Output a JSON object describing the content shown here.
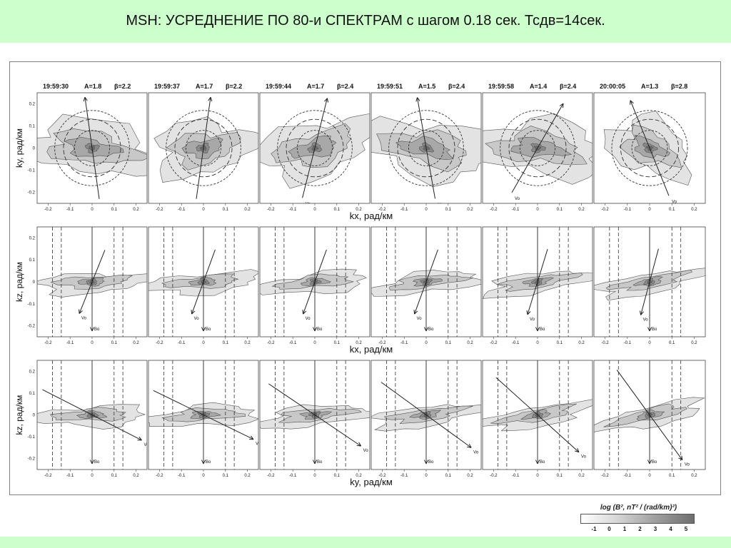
{
  "page": {
    "title": "MSH:   УСРЕДНЕНИЕ ПО 80-и СПЕКТРАМ  с шагом 0.18 сек.  Тсдв=14сек."
  },
  "colors": {
    "header_background": "#ccffcc",
    "contour_levels": [
      "#ffffff",
      "#e3e3e3",
      "#c8c8c8",
      "#a8a8a8",
      "#888888",
      "#6a6a6a"
    ]
  },
  "chart_data": {
    "type": "heatmap",
    "description_of_grid": "3 rows x 6 columns of contour plots",
    "panel_titles": [
      {
        "time": "19:59:30",
        "A": "A=1.8",
        "beta": "β=2.2"
      },
      {
        "time": "19:59:37",
        "A": "A=1.7",
        "beta": "β=2.2"
      },
      {
        "time": "19:59:44",
        "A": "A=1.7",
        "beta": "β=2.4"
      },
      {
        "time": "19:59:51",
        "A": "A=1.5",
        "beta": "β=2.4"
      },
      {
        "time": "19:59:58",
        "A": "A=1.4",
        "beta": "β=2.4"
      },
      {
        "time": "20:00:05",
        "A": "A=1.3",
        "beta": "β=2.8"
      }
    ],
    "rows": [
      {
        "ylabel": "ky, рад/км",
        "xlabel": "kx, рад/км",
        "vector_label": "Vo",
        "field_label": ""
      },
      {
        "ylabel": "kz, рад/км",
        "xlabel": "kx, рад/км",
        "vector_label": "Vo",
        "field_label": "Bo"
      },
      {
        "ylabel": "kz, рад/км",
        "xlabel": "ky, рад/км",
        "vector_label": "Vo",
        "field_label": "Bo"
      }
    ],
    "axis_ticks": [
      "-0.2",
      "-0.1",
      "0",
      "0.1",
      "0.2"
    ],
    "axis_tick_values": [
      -0.2,
      -0.1,
      0,
      0.1,
      0.2
    ],
    "xlim": [
      -0.25,
      0.25
    ],
    "ylim": [
      -0.25,
      0.25
    ],
    "row1_circle_radii": [
      0.08,
      0.13,
      0.17
    ],
    "row2_dashed_x": [
      -0.18,
      -0.14,
      0.1,
      0.14
    ],
    "row3_dashed_x": [
      -0.18,
      -0.14,
      0.1,
      0.14
    ],
    "row1_vo_angles_deg": [
      98,
      82,
      76,
      100,
      60,
      112
    ],
    "row2_vo_angles_deg": [
      68,
      70,
      70,
      70,
      73,
      75
    ],
    "row3_vo_angles_deg": [
      -27,
      -26,
      -34,
      -36,
      -42,
      -54
    ],
    "legend": {
      "title": "log (B², nT² / (rad/km)²)",
      "ticks": [
        "-1",
        "0",
        "1",
        "2",
        "3",
        "4",
        "5"
      ]
    }
  }
}
